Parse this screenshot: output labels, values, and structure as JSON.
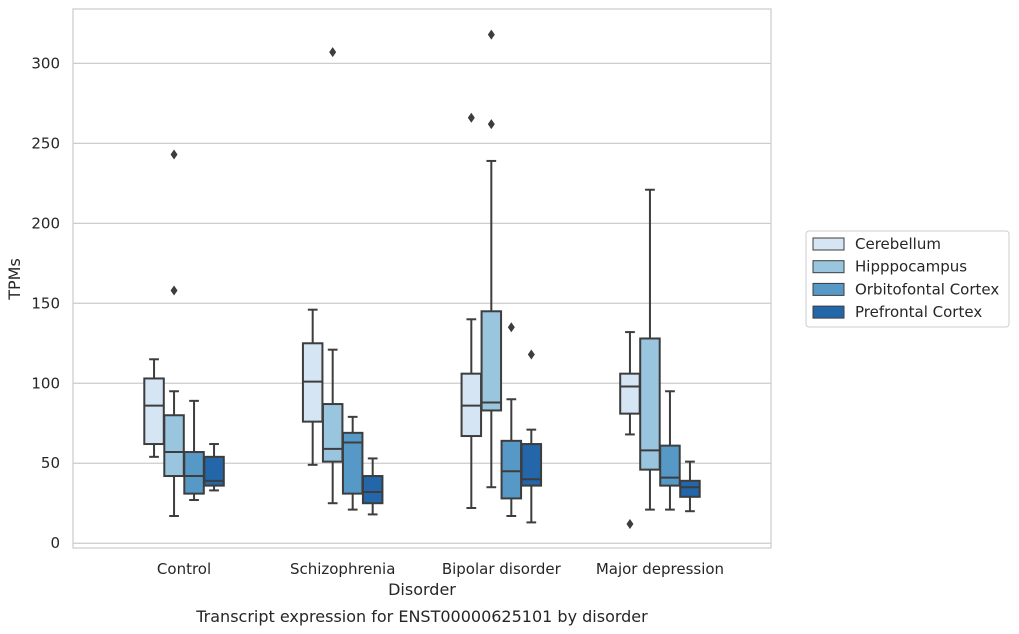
{
  "chart_data": {
    "type": "box",
    "title": "Transcript expression for ENST00000625101 by disorder",
    "xlabel": "Disorder",
    "ylabel": "TPMs",
    "ylim": [
      -3,
      334
    ],
    "yticks": [
      0,
      50,
      100,
      150,
      200,
      250,
      300
    ],
    "grid": "horizontal",
    "legend_position": "outside-right",
    "categories": [
      "Control",
      "Schizophrenia",
      "Bipolar disorder",
      "Major depression"
    ],
    "series": [
      {
        "name": "Cerebellum",
        "color": "#d6e5f4",
        "boxes": [
          {
            "whisker_low": 54,
            "q1": 62,
            "median": 86,
            "q3": 103,
            "whisker_high": 115,
            "outliers": []
          },
          {
            "whisker_low": 49,
            "q1": 76,
            "median": 101,
            "q3": 125,
            "whisker_high": 146,
            "outliers": []
          },
          {
            "whisker_low": 22,
            "q1": 67,
            "median": 86,
            "q3": 106,
            "whisker_high": 140,
            "outliers": [
              266
            ]
          },
          {
            "whisker_low": 68,
            "q1": 81,
            "median": 98,
            "q3": 106,
            "whisker_high": 132,
            "outliers": [
              12
            ]
          }
        ]
      },
      {
        "name": "Hipppocampus",
        "color": "#9ac5de",
        "boxes": [
          {
            "whisker_low": 17,
            "q1": 42,
            "median": 57,
            "q3": 80,
            "whisker_high": 95,
            "outliers": [
              243,
              158
            ]
          },
          {
            "whisker_low": 25,
            "q1": 51,
            "median": 59,
            "q3": 87,
            "whisker_high": 121,
            "outliers": [
              307
            ]
          },
          {
            "whisker_low": 35,
            "q1": 83,
            "median": 88,
            "q3": 145,
            "whisker_high": 239,
            "outliers": [
              318,
              262
            ]
          },
          {
            "whisker_low": 21,
            "q1": 46,
            "median": 58,
            "q3": 128,
            "whisker_high": 221,
            "outliers": []
          }
        ]
      },
      {
        "name": "Orbitofontal Cortex",
        "color": "#5799c6",
        "boxes": [
          {
            "whisker_low": 27,
            "q1": 31,
            "median": 42,
            "q3": 57,
            "whisker_high": 89,
            "outliers": []
          },
          {
            "whisker_low": 21,
            "q1": 31,
            "median": 63,
            "q3": 69,
            "whisker_high": 79,
            "outliers": []
          },
          {
            "whisker_low": 17,
            "q1": 28,
            "median": 45,
            "q3": 64,
            "whisker_high": 90,
            "outliers": [
              135
            ]
          },
          {
            "whisker_low": 21,
            "q1": 36,
            "median": 41,
            "q3": 61,
            "whisker_high": 95,
            "outliers": []
          }
        ]
      },
      {
        "name": "Prefrontal Cortex",
        "color": "#2366a9",
        "boxes": [
          {
            "whisker_low": 33,
            "q1": 36,
            "median": 39,
            "q3": 54,
            "whisker_high": 62,
            "outliers": []
          },
          {
            "whisker_low": 18,
            "q1": 25,
            "median": 32,
            "q3": 42,
            "whisker_high": 53,
            "outliers": []
          },
          {
            "whisker_low": 13,
            "q1": 36,
            "median": 40,
            "q3": 62,
            "whisker_high": 71,
            "outliers": [
              118
            ]
          },
          {
            "whisker_low": 20,
            "q1": 29,
            "median": 35,
            "q3": 39,
            "whisker_high": 51,
            "outliers": []
          }
        ]
      }
    ]
  }
}
